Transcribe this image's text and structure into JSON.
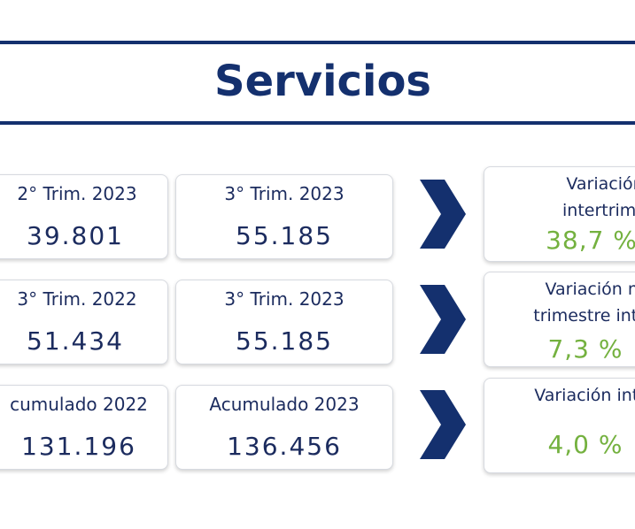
{
  "title": "Servicios",
  "rows": [
    {
      "left": {
        "label": "2° Trim. 2023",
        "value": "39.801"
      },
      "right": {
        "label": "3° Trim. 2023",
        "value": "55.185"
      },
      "result": {
        "line1": "Variación",
        "line2": "intertrimest",
        "pct": "38,7 %"
      }
    },
    {
      "left": {
        "label": "3° Trim. 2022",
        "value": "51.434"
      },
      "right": {
        "label": "3° Trim. 2023",
        "value": "55.185"
      },
      "result": {
        "line1": "Variación mis",
        "line2": "trimestre inter",
        "pct": "7,3 %"
      }
    },
    {
      "left": {
        "label": "cumulado 2022",
        "value": "131.196"
      },
      "right": {
        "label": "Acumulado 2023",
        "value": "136.456"
      },
      "result": {
        "line1": "Variación inter",
        "line2": "",
        "pct": "4,0 %"
      }
    }
  ],
  "colors": {
    "navy": "#14306e",
    "green": "#74b13f"
  },
  "icons": {
    "arrow": "chevron-right-icon"
  }
}
